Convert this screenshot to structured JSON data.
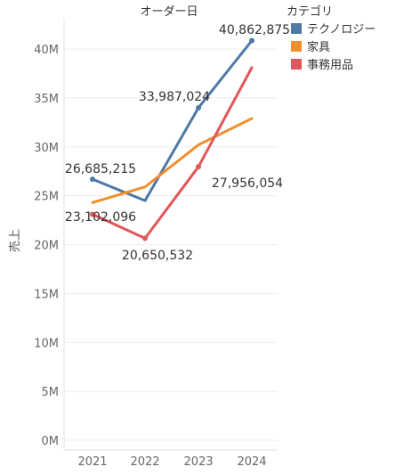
{
  "chart_data": {
    "type": "line",
    "title": "オーダー日",
    "ylabel": "売上",
    "xlabel": "",
    "x": [
      "2021",
      "2022",
      "2023",
      "2024"
    ],
    "ylim": [
      0,
      42000000
    ],
    "yticks": [
      0,
      5000000,
      10000000,
      15000000,
      20000000,
      25000000,
      30000000,
      35000000,
      40000000
    ],
    "ytick_labels": [
      "0M",
      "5M",
      "10M",
      "15M",
      "20M",
      "25M",
      "30M",
      "35M",
      "40M"
    ],
    "grid": true,
    "legend": {
      "title": "カテゴリ",
      "position": "top-right"
    },
    "series": [
      {
        "name": "テクノロジー",
        "color": "#4e79a7",
        "values": [
          26685215,
          24500000,
          33987024,
          40862875
        ],
        "labeled_points": [
          0,
          2,
          3
        ]
      },
      {
        "name": "家具",
        "color": "#f28e2b",
        "values": [
          24300000,
          25900000,
          30200000,
          32900000
        ],
        "labeled_points": []
      },
      {
        "name": "事務用品",
        "color": "#e15759",
        "values": [
          23102096,
          20650532,
          27956054,
          38100000
        ],
        "labeled_points": [
          0,
          1,
          2
        ]
      }
    ],
    "data_labels": [
      {
        "text": "26,685,215",
        "series": 0,
        "point": 0
      },
      {
        "text": "33,987,024",
        "series": 0,
        "point": 2
      },
      {
        "text": "40,862,875",
        "series": 0,
        "point": 3
      },
      {
        "text": "23,102,096",
        "series": 2,
        "point": 0
      },
      {
        "text": "20,650,532",
        "series": 2,
        "point": 1
      },
      {
        "text": "27,956,054",
        "series": 2,
        "point": 2
      }
    ]
  }
}
